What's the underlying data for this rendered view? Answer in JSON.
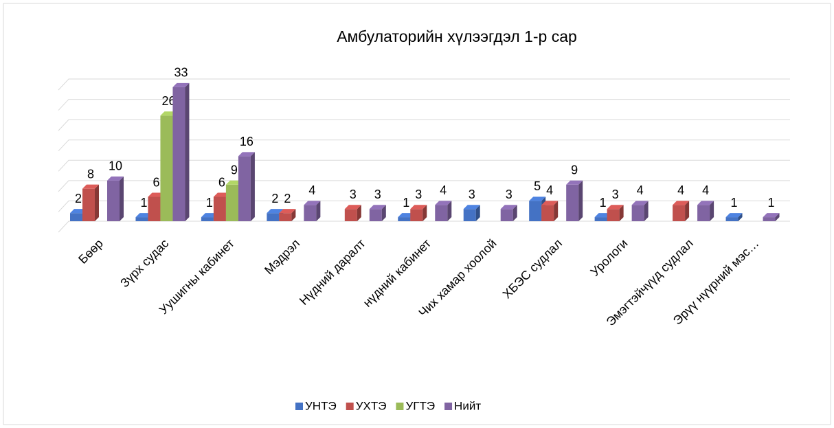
{
  "chart_data": {
    "type": "bar3d",
    "title": "Амбулаторийн хүлээгдэл 1-р сар",
    "categories": [
      "Бөөр",
      "Зүрх судас",
      "Уушигны кабинет",
      "Мэдрэл",
      "Нүдний даралт",
      "нүдний кабинет",
      "Чих хамар хоолой",
      "ХБЭС судлал",
      "Урологи",
      "Эмэгтэйчүүд судлал",
      "Эрүү нүүрний мэс…"
    ],
    "series": [
      {
        "name": "УНТЭ",
        "color": "#4472c4",
        "values": [
          2,
          1,
          1,
          2,
          null,
          1,
          3,
          5,
          1,
          null,
          1
        ]
      },
      {
        "name": "УХТЭ",
        "color": "#c0504d",
        "values": [
          8,
          6,
          6,
          2,
          3,
          3,
          null,
          4,
          3,
          4,
          null
        ]
      },
      {
        "name": "УГТЭ",
        "color": "#9bbb59",
        "values": [
          null,
          26,
          9,
          null,
          null,
          null,
          null,
          null,
          null,
          null,
          null
        ]
      },
      {
        "name": "Нийт",
        "color": "#8064a2",
        "values": [
          10,
          33,
          16,
          4,
          3,
          4,
          3,
          9,
          4,
          4,
          1
        ]
      }
    ],
    "ylim": [
      0,
      35
    ],
    "yticks": [
      0,
      5,
      10,
      15,
      20,
      25,
      30,
      35
    ],
    "grid": true,
    "legend": "bottom"
  }
}
